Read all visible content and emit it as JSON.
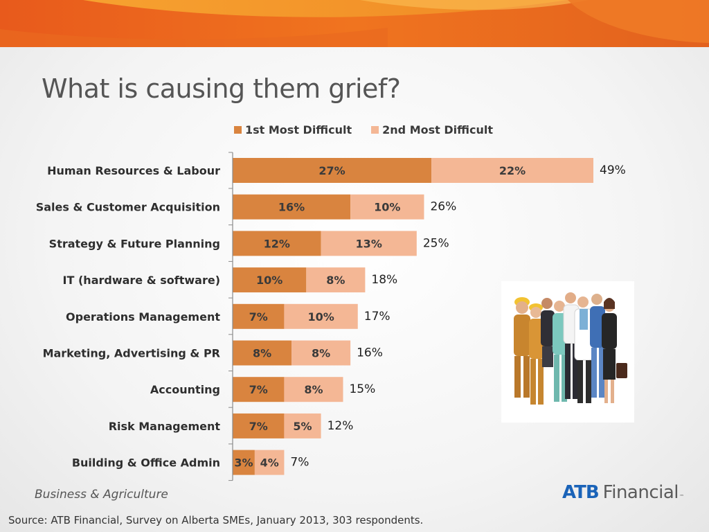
{
  "slide": {
    "title": "What is causing them grief?",
    "footer_left": "Business & Agriculture",
    "source": "Source:  ATB Financial, Survey on Alberta SMEs, January 2013, 303 respondents."
  },
  "logo": {
    "brand": "ATB",
    "name": "Financial",
    "tm": "™"
  },
  "colors": {
    "first": "#d9843f",
    "second": "#f4b795",
    "banner_dark": "#e2611e",
    "banner_light": "#f49a2c"
  },
  "image": {
    "icon": "group-of-workers-photo"
  },
  "chart_data": {
    "type": "bar",
    "orientation": "horizontal",
    "stacked": true,
    "legend_position": "top",
    "categories": [
      "Human Resources & Labour",
      "Sales & Customer Acquisition",
      "Strategy & Future Planning",
      "IT (hardware & software)",
      "Operations Management",
      "Marketing, Advertising & PR",
      "Accounting",
      "Risk Management",
      "Building & Office Admin"
    ],
    "series": [
      {
        "name": "1st Most Difficult",
        "values": [
          27,
          16,
          12,
          10,
          7,
          8,
          7,
          7,
          3
        ]
      },
      {
        "name": "2nd Most Difficult",
        "values": [
          22,
          10,
          13,
          8,
          10,
          8,
          8,
          5,
          4
        ]
      }
    ],
    "segment_labels": [
      [
        "27%",
        "16%",
        "12%",
        "10%",
        "7%",
        "8%",
        "7%",
        "7%",
        "3%"
      ],
      [
        "22%",
        "10%",
        "13%",
        "8%",
        "10%",
        "8%",
        "8%",
        "5%",
        "4%"
      ]
    ],
    "totals": [
      49,
      26,
      25,
      18,
      17,
      16,
      15,
      12,
      7
    ],
    "total_labels": [
      "49%",
      "26%",
      "25%",
      "18%",
      "17%",
      "16%",
      "15%",
      "12%",
      "7%"
    ],
    "unit": "%",
    "xlim": [
      0,
      49
    ]
  }
}
